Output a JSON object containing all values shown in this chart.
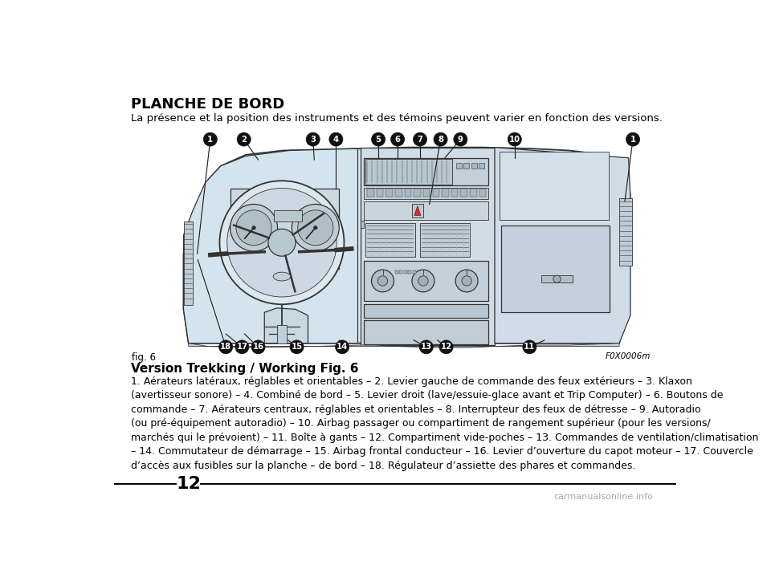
{
  "title": "PLANCHE DE BORD",
  "subtitle": "La présence et la position des instruments et des témoins peuvent varier en fonction des versions.",
  "fig_label": "fig. 6",
  "fig_ref": "F0X0006m",
  "version_label": "Version Trekking / Working Fig. 6",
  "body_text": "1. Aérateurs latéraux, réglables et orientables – 2. Levier gauche de commande des feux extérieurs – 3. Klaxon\n(avertisseur sonore) – 4. Combiné de bord – 5. Levier droit (lave/essuie-glace avant et Trip Computer) – 6. Boutons de\ncommande – 7. Aérateurs centraux, réglables et orientables – 8. Interrupteur des feux de détresse – 9. Autoradio\n(ou pré-équipement autoradio) – 10. Airbag passager ou compartiment de rangement supérieur (pour les versions/\nmarchés qui le prévoient) – 11. Boîte à gants – 12. Compartiment vide-poches – 13. Commandes de ventilation/climatisation\n– 14. Commutateur de démarrage – 15. Airbag frontal conducteur – 16. Levier d’ouverture du capot moteur – 17. Couvercle\nd’accès aux fusibles sur la planche – de bord – 18. Régulateur d’assiette des phares et commandes.",
  "page_number": "12",
  "watermark": "carmanualsonline.info",
  "bg_color": "#ffffff",
  "text_color": "#000000",
  "title_fontsize": 13,
  "subtitle_fontsize": 9.5,
  "body_fontsize": 9.0,
  "version_fontsize": 11,
  "page_num_fontsize": 16
}
